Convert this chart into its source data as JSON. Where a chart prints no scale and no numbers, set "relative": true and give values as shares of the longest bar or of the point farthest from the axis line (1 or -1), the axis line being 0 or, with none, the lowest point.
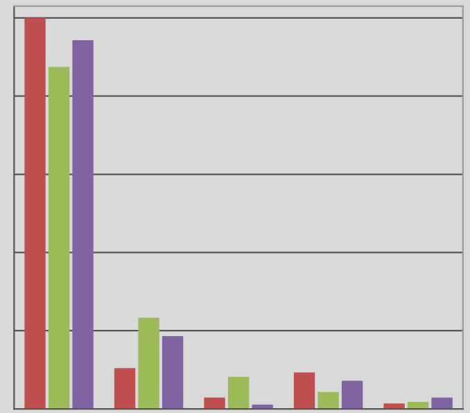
{
  "chart_data": {
    "type": "bar",
    "relative": true,
    "categories": [
      null,
      null,
      null,
      null,
      null
    ],
    "series": [
      {
        "color": "#c0504d",
        "values": [
          1,
          0.104,
          0.029,
          0.093,
          0.014
        ]
      },
      {
        "color": "#9bbb59",
        "values": [
          0.875,
          0.233,
          0.082,
          0.043,
          0.018
        ]
      },
      {
        "color": "#8064a2",
        "values": [
          0.943,
          0.186,
          0.011,
          0.072,
          0.029
        ]
      }
    ],
    "grid": "y",
    "legend": false
  }
}
